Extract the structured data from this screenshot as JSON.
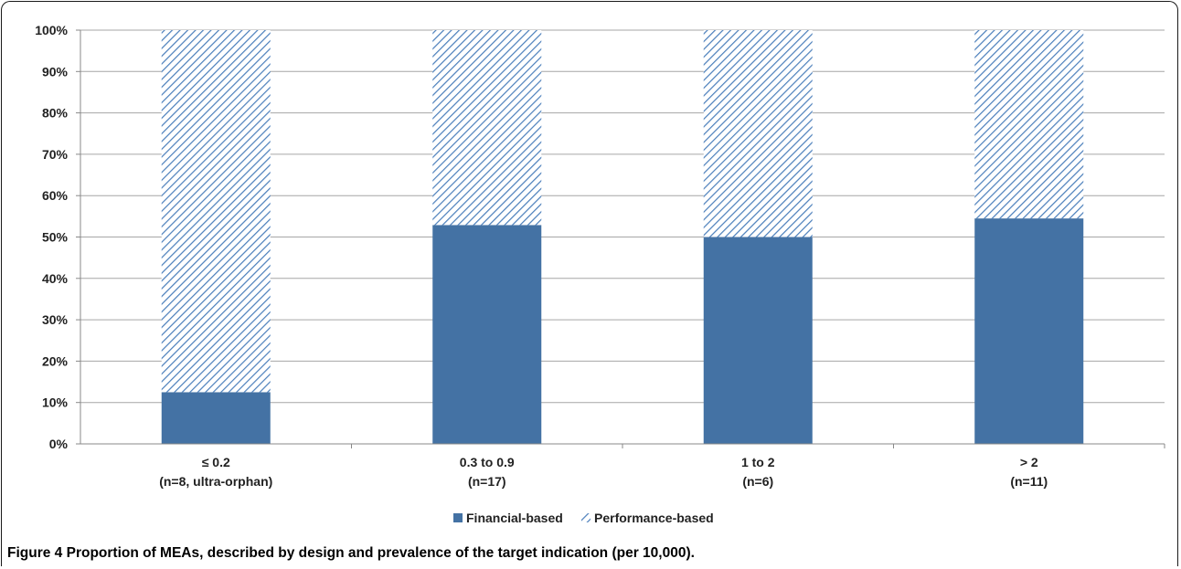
{
  "chart_data": {
    "type": "bar",
    "stacked": true,
    "percent_axis": true,
    "categories": [
      {
        "line1": "≤ 0.2",
        "line2": "(n=8, ultra-orphan)"
      },
      {
        "line1": "0.3 to 0.9",
        "line2": "(n=17)"
      },
      {
        "line1": "1 to 2",
        "line2": "(n=6)"
      },
      {
        "line1": "> 2",
        "line2": "(n=11)"
      }
    ],
    "series": [
      {
        "name": "Financial-based",
        "values": [
          12.5,
          52.9,
          50.0,
          54.5
        ],
        "color": "#4472a4",
        "pattern": "solid"
      },
      {
        "name": "Performance-based",
        "values": [
          87.5,
          47.1,
          50.0,
          45.5
        ],
        "color": "#4a7ebb",
        "pattern": "diagonal-hatch"
      }
    ],
    "yticks": [
      "0%",
      "10%",
      "20%",
      "30%",
      "40%",
      "50%",
      "60%",
      "70%",
      "80%",
      "90%",
      "100%"
    ],
    "ylim": [
      0,
      100
    ],
    "grid": true,
    "legend_position": "bottom-center"
  },
  "caption": {
    "label": "Figure 4",
    "text": "Proportion of MEAs, described by design and prevalence of the target indication (per 10,000)."
  }
}
